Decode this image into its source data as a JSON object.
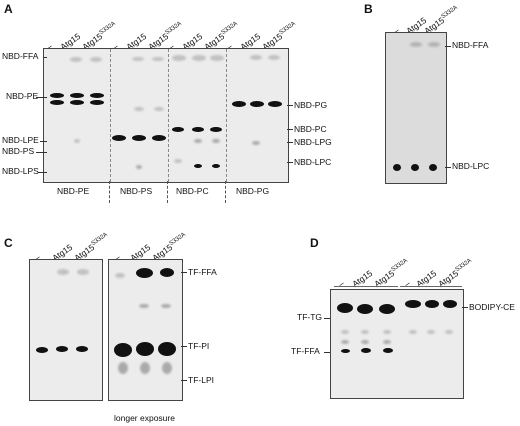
{
  "panels": {
    "A": {
      "letter": "A",
      "lanes": [
        "–",
        "Atg15",
        "Atg15",
        "–",
        "Atg15",
        "Atg15",
        "–",
        "Atg15",
        "Atg15",
        "–",
        "Atg15",
        "Atg15"
      ],
      "lane_sup": "S332A",
      "left_labels": [
        "NBD-FFA",
        "NBD-PE",
        "NBD-LPE",
        "NBD-PS",
        "NBD-LPS"
      ],
      "right_labels": [
        "NBD-PG",
        "NBD-PC",
        "NBD-LPG",
        "NBD-LPC"
      ],
      "bottom_labels": [
        "NBD-PE",
        "NBD-PS",
        "NBD-PC",
        "NBD-PG"
      ]
    },
    "B": {
      "letter": "B",
      "lanes": [
        "–",
        "Atg15",
        "Atg15"
      ],
      "lane_sup": "S332A",
      "right_labels": [
        "NBD-FFA",
        "NBD-LPC"
      ]
    },
    "C": {
      "letter": "C",
      "lanes_left": [
        "–",
        "Atg15",
        "Atg15"
      ],
      "lanes_right": [
        "–",
        "Atg15",
        "Atg15"
      ],
      "lane_sup": "S332A",
      "right_labels": [
        "TF-FFA",
        "TF-PI",
        "TF-LPI"
      ],
      "caption": "longer exposure"
    },
    "D": {
      "letter": "D",
      "lanes": [
        "–",
        "Atg15",
        "Atg15",
        "–",
        "Atg15",
        "Atg15"
      ],
      "lane_sup": "S332A",
      "left_labels": [
        "TF-TG",
        "TF-FFA"
      ],
      "right_labels": [
        "BODIPY-CE"
      ]
    }
  }
}
